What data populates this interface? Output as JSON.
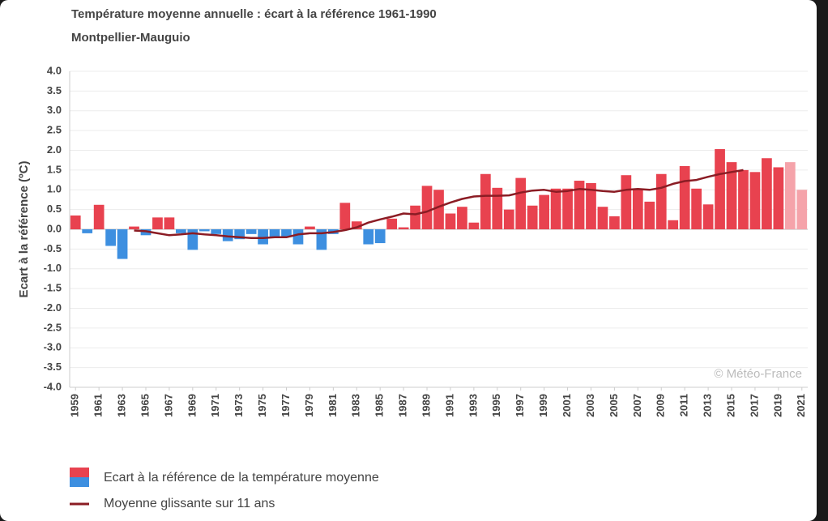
{
  "chart_data": {
    "type": "bar",
    "title": "Température moyenne annuelle : écart à la référence 1961-1990",
    "subtitle": "Montpellier-Mauguio",
    "ylabel": "Ecart à la référence (ºC)",
    "watermark": "© Météo-France",
    "x": [
      1959,
      1960,
      1961,
      1962,
      1963,
      1964,
      1965,
      1966,
      1967,
      1968,
      1969,
      1970,
      1971,
      1972,
      1973,
      1974,
      1975,
      1976,
      1977,
      1978,
      1979,
      1980,
      1981,
      1982,
      1983,
      1984,
      1985,
      1986,
      1987,
      1988,
      1989,
      1990,
      1991,
      1992,
      1993,
      1994,
      1995,
      1996,
      1997,
      1998,
      1999,
      2000,
      2001,
      2002,
      2003,
      2004,
      2005,
      2006,
      2007,
      2008,
      2009,
      2010,
      2011,
      2012,
      2013,
      2014,
      2015,
      2016,
      2017,
      2018,
      2019,
      2020,
      2021
    ],
    "xlim": [
      1958.5,
      2021.5
    ],
    "xticks": [
      1959,
      1961,
      1963,
      1965,
      1967,
      1969,
      1971,
      1973,
      1975,
      1977,
      1979,
      1981,
      1983,
      1985,
      1987,
      1989,
      1991,
      1993,
      1995,
      1997,
      1999,
      2001,
      2003,
      2005,
      2007,
      2009,
      2011,
      2013,
      2015,
      2017,
      2019,
      2021
    ],
    "ylim": [
      -4,
      4
    ],
    "yticks": [
      {
        "value": 4,
        "label": "4.0"
      },
      3.5,
      {
        "value": 3,
        "label": "3.0"
      },
      2.5,
      {
        "value": 2,
        "label": "2.0"
      },
      1.5,
      {
        "value": 1,
        "label": "1.0"
      },
      0.5,
      {
        "value": 0,
        "label": "0.0"
      },
      -0.5,
      {
        "value": -1,
        "label": "-1.0"
      },
      -1.5,
      {
        "value": -2,
        "label": "-2.0"
      },
      -2.5,
      {
        "value": -3,
        "label": "-3.0"
      },
      -3.5,
      {
        "value": -4,
        "label": "-4.0"
      }
    ],
    "grid": true,
    "series": [
      {
        "name": "Ecart à la référence de la température moyenne",
        "type": "bar",
        "color": "#e8424f",
        "negative_color": "#3d8fe0",
        "provisional_color": "#f5a3aa",
        "provisional_from": 2020,
        "values": [
          0.35,
          -0.1,
          0.62,
          -0.42,
          -0.75,
          0.07,
          -0.15,
          0.3,
          0.3,
          -0.1,
          -0.52,
          -0.05,
          -0.12,
          -0.3,
          -0.25,
          -0.12,
          -0.38,
          -0.22,
          -0.2,
          -0.38,
          0.07,
          -0.52,
          -0.12,
          0.67,
          0.2,
          -0.38,
          -0.35,
          0.27,
          0.05,
          0.6,
          1.1,
          1.0,
          0.4,
          0.57,
          0.17,
          1.4,
          1.05,
          0.5,
          1.3,
          0.6,
          0.87,
          1.03,
          1.03,
          1.23,
          1.17,
          0.57,
          0.33,
          1.37,
          1.0,
          0.7,
          1.4,
          0.23,
          1.6,
          1.03,
          0.63,
          2.03,
          1.7,
          1.5,
          1.45,
          1.8,
          1.57,
          1.7,
          1.0
        ]
      },
      {
        "name": "Moyenne glissante sur 11 ans",
        "type": "line",
        "color": "#8b1c24",
        "values": [
          null,
          null,
          null,
          null,
          null,
          -0.03,
          -0.05,
          -0.1,
          -0.15,
          -0.13,
          -0.1,
          -0.13,
          -0.15,
          -0.18,
          -0.2,
          -0.22,
          -0.22,
          -0.2,
          -0.2,
          -0.13,
          -0.1,
          -0.1,
          -0.07,
          -0.02,
          0.05,
          0.17,
          0.25,
          0.32,
          0.4,
          0.38,
          0.45,
          0.57,
          0.68,
          0.77,
          0.83,
          0.85,
          0.85,
          0.86,
          0.93,
          0.98,
          1.0,
          0.95,
          0.97,
          1.02,
          1.0,
          0.97,
          0.95,
          1.0,
          1.02,
          1.0,
          1.05,
          1.15,
          1.22,
          1.25,
          1.33,
          1.4,
          1.45,
          1.5,
          null,
          null,
          null,
          null,
          null
        ]
      }
    ]
  }
}
